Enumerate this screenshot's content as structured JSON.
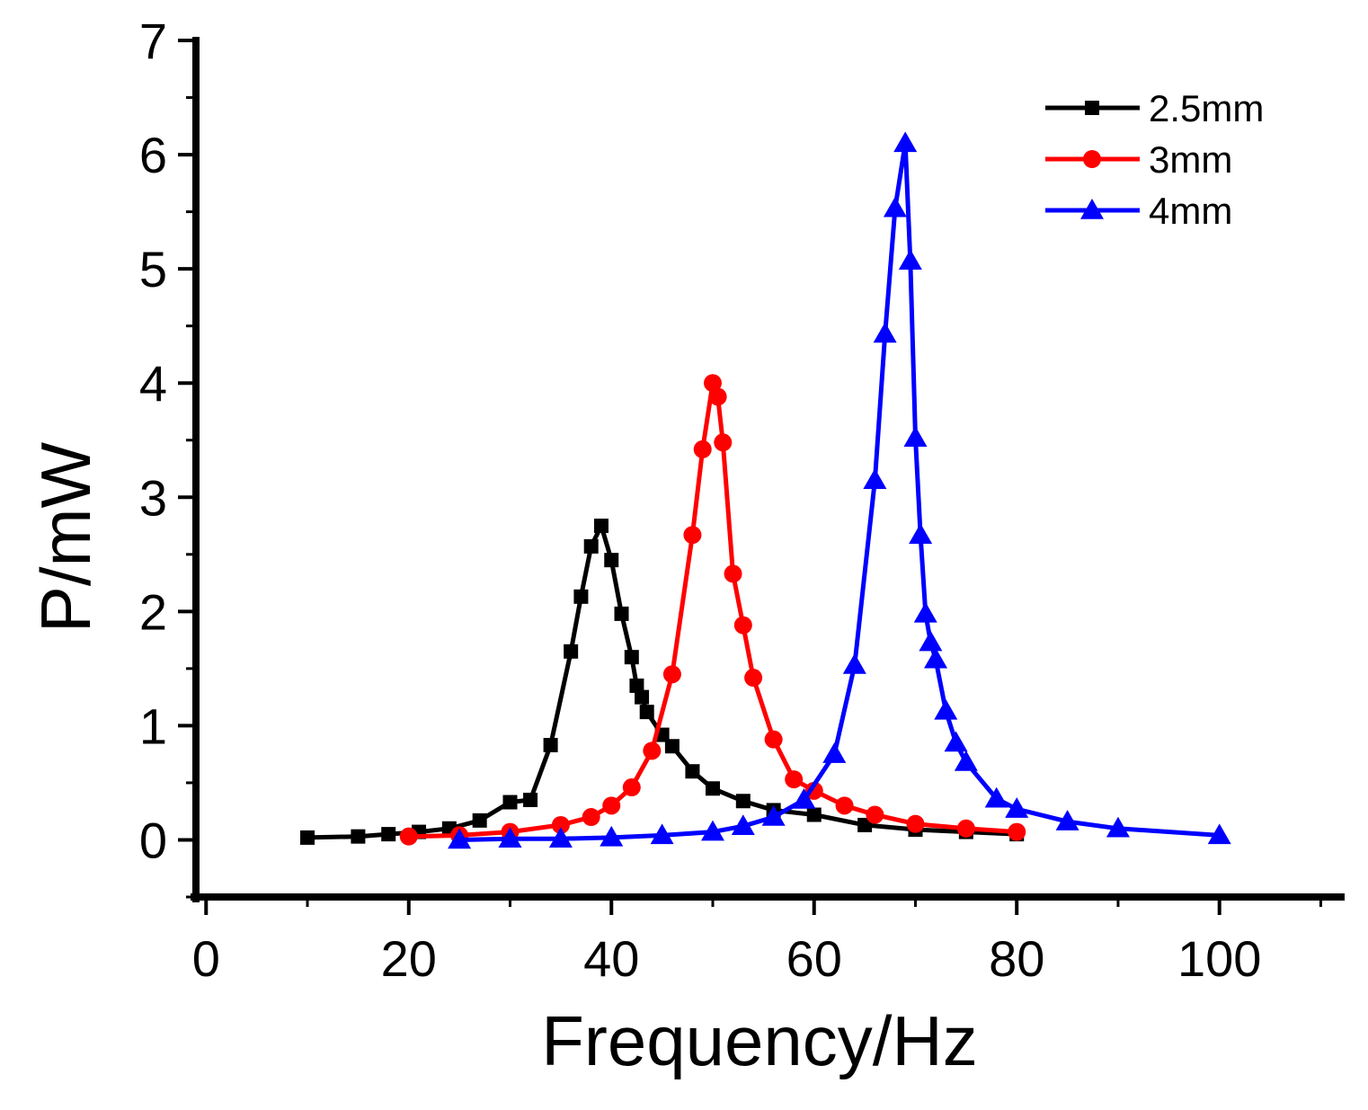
{
  "chart_data": {
    "type": "line",
    "title": "",
    "xlabel": "Frequency/Hz",
    "ylabel": "P/mW",
    "xlim": [
      -1,
      112
    ],
    "ylim": [
      -0.5,
      7
    ],
    "xticks": [
      0,
      20,
      40,
      60,
      80,
      100
    ],
    "xtick_labels": [
      "0",
      "20",
      "40",
      "60",
      "80",
      "100"
    ],
    "yticks": [
      0,
      1,
      2,
      3,
      4,
      5,
      6,
      7
    ],
    "ytick_labels": [
      "0",
      "1",
      "2",
      "3",
      "4",
      "5",
      "6",
      "7"
    ],
    "x_minor_step": 10,
    "y_minor_step": 0.5,
    "grid": false,
    "legend_position": "top-right",
    "series": [
      {
        "name": "2.5mm",
        "color": "#000000",
        "marker": "square",
        "points": [
          [
            10,
            0.02
          ],
          [
            15,
            0.03
          ],
          [
            18,
            0.05
          ],
          [
            21,
            0.07
          ],
          [
            24,
            0.1
          ],
          [
            27,
            0.17
          ],
          [
            30,
            0.33
          ],
          [
            32,
            0.35
          ],
          [
            34,
            0.83
          ],
          [
            36,
            1.65
          ],
          [
            37,
            2.13
          ],
          [
            38,
            2.57
          ],
          [
            39,
            2.75
          ],
          [
            40,
            2.45
          ],
          [
            41,
            1.98
          ],
          [
            42,
            1.6
          ],
          [
            42.5,
            1.35
          ],
          [
            43,
            1.25
          ],
          [
            43.5,
            1.12
          ],
          [
            45,
            0.92
          ],
          [
            46,
            0.82
          ],
          [
            48,
            0.6
          ],
          [
            50,
            0.45
          ],
          [
            53,
            0.34
          ],
          [
            56,
            0.26
          ],
          [
            60,
            0.22
          ],
          [
            65,
            0.13
          ],
          [
            70,
            0.09
          ],
          [
            75,
            0.07
          ],
          [
            80,
            0.05
          ]
        ]
      },
      {
        "name": "3mm",
        "color": "#ff0000",
        "marker": "circle",
        "points": [
          [
            20,
            0.03
          ],
          [
            25,
            0.04
          ],
          [
            30,
            0.07
          ],
          [
            35,
            0.13
          ],
          [
            38,
            0.2
          ],
          [
            40,
            0.3
          ],
          [
            42,
            0.46
          ],
          [
            44,
            0.78
          ],
          [
            46,
            1.45
          ],
          [
            48,
            2.67
          ],
          [
            49,
            3.42
          ],
          [
            50,
            4.0
          ],
          [
            50.5,
            3.88
          ],
          [
            51,
            3.48
          ],
          [
            52,
            2.33
          ],
          [
            53,
            1.88
          ],
          [
            54,
            1.42
          ],
          [
            56,
            0.88
          ],
          [
            58,
            0.53
          ],
          [
            60,
            0.43
          ],
          [
            63,
            0.3
          ],
          [
            66,
            0.22
          ],
          [
            70,
            0.14
          ],
          [
            75,
            0.1
          ],
          [
            80,
            0.07
          ]
        ]
      },
      {
        "name": "4mm",
        "color": "#0000ff",
        "marker": "triangle",
        "points": [
          [
            25,
            0.0
          ],
          [
            30,
            0.01
          ],
          [
            35,
            0.01
          ],
          [
            40,
            0.02
          ],
          [
            45,
            0.04
          ],
          [
            50,
            0.07
          ],
          [
            53,
            0.12
          ],
          [
            56,
            0.2
          ],
          [
            59,
            0.35
          ],
          [
            62,
            0.75
          ],
          [
            64,
            1.53
          ],
          [
            66,
            3.15
          ],
          [
            67,
            4.43
          ],
          [
            68,
            5.53
          ],
          [
            69,
            6.1
          ],
          [
            69.5,
            5.07
          ],
          [
            70,
            3.52
          ],
          [
            70.5,
            2.67
          ],
          [
            71,
            1.98
          ],
          [
            71.5,
            1.73
          ],
          [
            72,
            1.58
          ],
          [
            73,
            1.13
          ],
          [
            74,
            0.85
          ],
          [
            75,
            0.68
          ],
          [
            78,
            0.36
          ],
          [
            80,
            0.27
          ],
          [
            85,
            0.16
          ],
          [
            90,
            0.1
          ],
          [
            100,
            0.04
          ]
        ]
      }
    ]
  }
}
